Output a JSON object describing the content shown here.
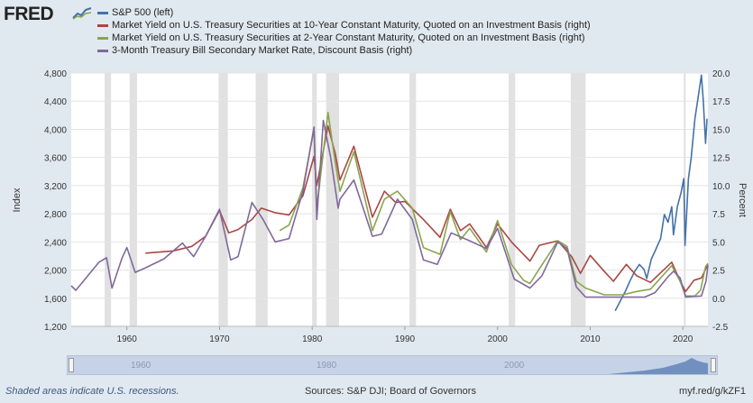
{
  "brand": {
    "logo_text": "FRED",
    "logo_icon": "fred-chart-icon"
  },
  "legend": [
    {
      "label": "S&P 500 (left)",
      "color": "#4572a7"
    },
    {
      "label": "Market Yield on U.S. Treasury Securities at 10-Year Constant Maturity, Quoted on an Investment Basis (right)",
      "color": "#aa4643"
    },
    {
      "label": "Market Yield on U.S. Treasury Securities at 2-Year Constant Maturity, Quoted on an Investment Basis (right)",
      "color": "#89a54e"
    },
    {
      "label": "3-Month Treasury Bill Secondary Market Rate, Discount Basis (right)",
      "color": "#80699b"
    }
  ],
  "chart_data": {
    "type": "line",
    "x_axis": {
      "ticks": [
        "1960",
        "1970",
        "1980",
        "1990",
        "2000",
        "2010",
        "2020"
      ],
      "range": [
        1954,
        2022.7
      ]
    },
    "y_left": {
      "label": "Index",
      "ticks": [
        "1,200",
        "1,600",
        "2,000",
        "2,400",
        "2,800",
        "3,200",
        "3,600",
        "4,000",
        "4,400",
        "4,800"
      ],
      "range": [
        1200,
        4800
      ]
    },
    "y_right": {
      "label": "Percent",
      "ticks": [
        "-2.5",
        "0.0",
        "2.5",
        "5.0",
        "7.5",
        "10.0",
        "12.5",
        "15.0",
        "17.5",
        "20.0"
      ],
      "range": [
        -2.5,
        20
      ]
    },
    "recessions": [
      [
        1957.6,
        1958.3
      ],
      [
        1960.3,
        1961.1
      ],
      [
        1969.9,
        1970.9
      ],
      [
        1973.9,
        1975.2
      ],
      [
        1980.0,
        1980.5
      ],
      [
        1981.5,
        1982.9
      ],
      [
        1990.5,
        1991.2
      ],
      [
        2001.2,
        2001.9
      ],
      [
        2007.9,
        2009.5
      ],
      [
        2020.1,
        2020.3
      ]
    ],
    "series": [
      {
        "name": "S&P 500 (left)",
        "axis": "left",
        "color": "#4572a7",
        "points": [
          [
            2012.7,
            1420
          ],
          [
            2013.2,
            1550
          ],
          [
            2013.8,
            1700
          ],
          [
            2014.3,
            1850
          ],
          [
            2014.8,
            1980
          ],
          [
            2015.3,
            2080
          ],
          [
            2015.8,
            2010
          ],
          [
            2016.1,
            1880
          ],
          [
            2016.6,
            2160
          ],
          [
            2017.0,
            2270
          ],
          [
            2017.6,
            2450
          ],
          [
            2018.0,
            2790
          ],
          [
            2018.4,
            2680
          ],
          [
            2018.8,
            2900
          ],
          [
            2018.98,
            2500
          ],
          [
            2019.4,
            2900
          ],
          [
            2019.8,
            3100
          ],
          [
            2020.1,
            3300
          ],
          [
            2020.23,
            2350
          ],
          [
            2020.6,
            3300
          ],
          [
            2020.9,
            3600
          ],
          [
            2021.3,
            4150
          ],
          [
            2021.7,
            4500
          ],
          [
            2022.0,
            4770
          ],
          [
            2022.2,
            4400
          ],
          [
            2022.45,
            3800
          ],
          [
            2022.6,
            4150
          ]
        ]
      },
      {
        "name": "10-Year Treasury",
        "axis": "right",
        "color": "#aa4643",
        "points": [
          [
            1962.0,
            4.0
          ],
          [
            1965.0,
            4.2
          ],
          [
            1967.0,
            4.6
          ],
          [
            1968.5,
            5.5
          ],
          [
            1970.0,
            7.8
          ],
          [
            1971.0,
            5.8
          ],
          [
            1972.0,
            6.1
          ],
          [
            1973.5,
            7.0
          ],
          [
            1974.5,
            8.0
          ],
          [
            1976.0,
            7.6
          ],
          [
            1977.5,
            7.4
          ],
          [
            1979.0,
            9.1
          ],
          [
            1980.2,
            12.6
          ],
          [
            1980.5,
            10.0
          ],
          [
            1981.7,
            15.3
          ],
          [
            1982.5,
            12.8
          ],
          [
            1983.0,
            10.5
          ],
          [
            1984.5,
            13.5
          ],
          [
            1986.5,
            7.2
          ],
          [
            1987.8,
            9.5
          ],
          [
            1989.0,
            8.5
          ],
          [
            1990.0,
            8.6
          ],
          [
            1992.0,
            7.0
          ],
          [
            1993.8,
            5.4
          ],
          [
            1994.9,
            7.9
          ],
          [
            1996.0,
            6.0
          ],
          [
            1997.0,
            6.6
          ],
          [
            1998.8,
            4.5
          ],
          [
            2000.0,
            6.6
          ],
          [
            2001.5,
            5.0
          ],
          [
            2003.5,
            3.3
          ],
          [
            2004.5,
            4.7
          ],
          [
            2006.5,
            5.1
          ],
          [
            2008.0,
            3.7
          ],
          [
            2008.95,
            2.2
          ],
          [
            2010.0,
            3.8
          ],
          [
            2011.5,
            2.4
          ],
          [
            2012.5,
            1.5
          ],
          [
            2013.9,
            3.0
          ],
          [
            2015.0,
            2.0
          ],
          [
            2016.5,
            1.4
          ],
          [
            2018.8,
            3.2
          ],
          [
            2019.7,
            1.5
          ],
          [
            2020.3,
            0.6
          ],
          [
            2021.2,
            1.6
          ],
          [
            2022.0,
            1.8
          ],
          [
            2022.7,
            3.0
          ]
        ]
      },
      {
        "name": "2-Year Treasury",
        "axis": "right",
        "color": "#89a54e",
        "points": [
          [
            1976.5,
            6.0
          ],
          [
            1977.5,
            6.5
          ],
          [
            1979.0,
            9.8
          ],
          [
            1980.2,
            15.0
          ],
          [
            1980.5,
            8.0
          ],
          [
            1981.7,
            16.5
          ],
          [
            1982.5,
            12.0
          ],
          [
            1983.0,
            9.5
          ],
          [
            1984.5,
            13.0
          ],
          [
            1986.5,
            6.0
          ],
          [
            1987.8,
            8.8
          ],
          [
            1989.2,
            9.5
          ],
          [
            1990.8,
            8.0
          ],
          [
            1992.0,
            4.5
          ],
          [
            1993.8,
            3.9
          ],
          [
            1994.9,
            7.7
          ],
          [
            1996.0,
            5.2
          ],
          [
            1997.0,
            6.2
          ],
          [
            1998.8,
            4.1
          ],
          [
            2000.0,
            6.9
          ],
          [
            2001.5,
            3.0
          ],
          [
            2002.8,
            1.6
          ],
          [
            2003.5,
            1.3
          ],
          [
            2004.5,
            2.6
          ],
          [
            2006.5,
            5.1
          ],
          [
            2007.5,
            4.6
          ],
          [
            2008.5,
            1.5
          ],
          [
            2009.5,
            0.9
          ],
          [
            2011.5,
            0.3
          ],
          [
            2013.5,
            0.3
          ],
          [
            2015.0,
            0.6
          ],
          [
            2016.5,
            0.8
          ],
          [
            2018.8,
            2.9
          ],
          [
            2019.7,
            1.5
          ],
          [
            2020.3,
            0.2
          ],
          [
            2021.3,
            0.2
          ],
          [
            2021.9,
            0.7
          ],
          [
            2022.45,
            2.8
          ],
          [
            2022.7,
            3.1
          ]
        ]
      },
      {
        "name": "3-Month Treasury Bill",
        "axis": "right",
        "color": "#80699b",
        "points": [
          [
            1954.0,
            1.1
          ],
          [
            1954.5,
            0.7
          ],
          [
            1955.5,
            1.7
          ],
          [
            1957.0,
            3.2
          ],
          [
            1957.8,
            3.6
          ],
          [
            1958.4,
            0.9
          ],
          [
            1959.5,
            3.6
          ],
          [
            1960.0,
            4.5
          ],
          [
            1960.9,
            2.3
          ],
          [
            1962.0,
            2.7
          ],
          [
            1964.0,
            3.5
          ],
          [
            1966.0,
            4.9
          ],
          [
            1967.2,
            3.7
          ],
          [
            1968.5,
            5.5
          ],
          [
            1970.0,
            7.9
          ],
          [
            1971.2,
            3.4
          ],
          [
            1972.0,
            3.7
          ],
          [
            1973.5,
            8.5
          ],
          [
            1974.7,
            7.0
          ],
          [
            1976.0,
            5.0
          ],
          [
            1977.5,
            5.3
          ],
          [
            1979.0,
            9.5
          ],
          [
            1980.2,
            15.2
          ],
          [
            1980.5,
            7.0
          ],
          [
            1981.2,
            15.8
          ],
          [
            1982.0,
            12.5
          ],
          [
            1982.8,
            8.0
          ],
          [
            1983.0,
            8.8
          ],
          [
            1984.5,
            10.5
          ],
          [
            1986.5,
            5.5
          ],
          [
            1987.5,
            5.7
          ],
          [
            1989.2,
            8.8
          ],
          [
            1990.8,
            7.0
          ],
          [
            1992.0,
            3.4
          ],
          [
            1993.5,
            3.0
          ],
          [
            1995.0,
            5.8
          ],
          [
            1997.0,
            5.1
          ],
          [
            1998.8,
            4.4
          ],
          [
            2000.0,
            6.2
          ],
          [
            2001.8,
            1.7
          ],
          [
            2003.5,
            0.9
          ],
          [
            2004.8,
            2.0
          ],
          [
            2006.5,
            5.0
          ],
          [
            2007.5,
            4.4
          ],
          [
            2008.5,
            1.0
          ],
          [
            2009.5,
            0.1
          ],
          [
            2015.9,
            0.1
          ],
          [
            2017.0,
            0.5
          ],
          [
            2018.5,
            2.0
          ],
          [
            2019.0,
            2.4
          ],
          [
            2019.7,
            1.8
          ],
          [
            2020.3,
            0.1
          ],
          [
            2022.0,
            0.2
          ],
          [
            2022.5,
            1.5
          ],
          [
            2022.7,
            2.9
          ]
        ]
      }
    ]
  },
  "navigator": {
    "labels": [
      "1960",
      "1980",
      "2000"
    ]
  },
  "footer": {
    "note": "Shaded areas indicate U.S. recessions.",
    "sources": "Sources: S&P DJI; Board of Governors",
    "link": "myf.red/g/kZF1"
  }
}
